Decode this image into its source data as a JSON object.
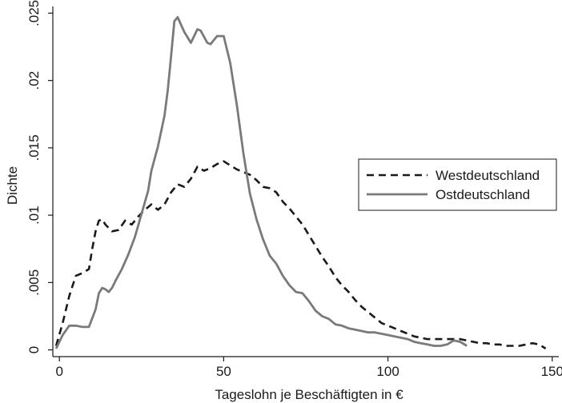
{
  "chart_data": {
    "type": "line",
    "title": "",
    "xlabel": "Tageslohn je Beschäftigten in €",
    "ylabel": "Dichte",
    "xlim": [
      -2,
      152
    ],
    "ylim": [
      -0.0005,
      0.0255
    ],
    "x_ticks": [
      0,
      50,
      100,
      150
    ],
    "x_tick_labels": [
      "0",
      "50",
      "100",
      "150"
    ],
    "y_ticks": [
      0,
      0.005,
      0.01,
      0.015,
      0.02,
      0.025
    ],
    "y_tick_labels": [
      "0",
      ".005",
      ".01",
      ".015",
      ".02",
      ".025"
    ],
    "grid": false,
    "legend_position": "right",
    "series": [
      {
        "name": "Westdeutschland",
        "style": "dashed",
        "color": "#1a1a1a",
        "points": [
          [
            -1,
            0.0003
          ],
          [
            1,
            0.002
          ],
          [
            3,
            0.004
          ],
          [
            5,
            0.0055
          ],
          [
            7,
            0.0057
          ],
          [
            9,
            0.006
          ],
          [
            10,
            0.0075
          ],
          [
            11,
            0.0088
          ],
          [
            12,
            0.0096
          ],
          [
            13,
            0.0097
          ],
          [
            14,
            0.0093
          ],
          [
            16,
            0.0088
          ],
          [
            18,
            0.0089
          ],
          [
            20,
            0.0096
          ],
          [
            22,
            0.0093
          ],
          [
            24,
            0.0099
          ],
          [
            26,
            0.0104
          ],
          [
            28,
            0.0108
          ],
          [
            30,
            0.0104
          ],
          [
            32,
            0.0108
          ],
          [
            34,
            0.0117
          ],
          [
            36,
            0.0123
          ],
          [
            38,
            0.0121
          ],
          [
            40,
            0.0127
          ],
          [
            42,
            0.0136
          ],
          [
            44,
            0.0133
          ],
          [
            46,
            0.0135
          ],
          [
            48,
            0.0138
          ],
          [
            50,
            0.014
          ],
          [
            52,
            0.0137
          ],
          [
            54,
            0.0134
          ],
          [
            56,
            0.0132
          ],
          [
            58,
            0.013
          ],
          [
            60,
            0.0126
          ],
          [
            62,
            0.0121
          ],
          [
            64,
            0.012
          ],
          [
            66,
            0.0117
          ],
          [
            68,
            0.011
          ],
          [
            70,
            0.0105
          ],
          [
            72,
            0.0099
          ],
          [
            74,
            0.0093
          ],
          [
            76,
            0.0085
          ],
          [
            78,
            0.0077
          ],
          [
            80,
            0.0069
          ],
          [
            82,
            0.0062
          ],
          [
            84,
            0.0054
          ],
          [
            86,
            0.0048
          ],
          [
            88,
            0.0043
          ],
          [
            90,
            0.0037
          ],
          [
            92,
            0.0032
          ],
          [
            94,
            0.0028
          ],
          [
            96,
            0.0024
          ],
          [
            98,
            0.002
          ],
          [
            100,
            0.0018
          ],
          [
            102,
            0.0016
          ],
          [
            104,
            0.0014
          ],
          [
            106,
            0.0012
          ],
          [
            108,
            0.001
          ],
          [
            110,
            0.0009
          ],
          [
            112,
            0.0008
          ],
          [
            114,
            0.0008
          ],
          [
            116,
            0.0008
          ],
          [
            118,
            0.0008
          ],
          [
            120,
            0.0008
          ],
          [
            122,
            0.0008
          ],
          [
            124,
            0.0007
          ],
          [
            126,
            0.0006
          ],
          [
            128,
            0.0005
          ],
          [
            130,
            0.0005
          ],
          [
            132,
            0.0004
          ],
          [
            134,
            0.0004
          ],
          [
            136,
            0.0003
          ],
          [
            138,
            0.0003
          ],
          [
            140,
            0.0003
          ],
          [
            142,
            0.0004
          ],
          [
            144,
            0.0005
          ],
          [
            146,
            0.0004
          ],
          [
            148,
            0.0001
          ]
        ]
      },
      {
        "name": "Ostdeutschland",
        "style": "solid",
        "color": "#7a7a7a",
        "points": [
          [
            -1,
            0.0001
          ],
          [
            1,
            0.0011
          ],
          [
            3,
            0.0018
          ],
          [
            5,
            0.0018
          ],
          [
            7,
            0.0017
          ],
          [
            9,
            0.0017
          ],
          [
            11,
            0.003
          ],
          [
            12,
            0.0042
          ],
          [
            13,
            0.0046
          ],
          [
            14,
            0.0045
          ],
          [
            15,
            0.0043
          ],
          [
            16,
            0.0046
          ],
          [
            17,
            0.0051
          ],
          [
            19,
            0.006
          ],
          [
            21,
            0.0071
          ],
          [
            23,
            0.0084
          ],
          [
            25,
            0.0101
          ],
          [
            27,
            0.0118
          ],
          [
            28,
            0.0133
          ],
          [
            30,
            0.0151
          ],
          [
            32,
            0.0174
          ],
          [
            33,
            0.0193
          ],
          [
            34,
            0.0218
          ],
          [
            35,
            0.0244
          ],
          [
            36,
            0.0247
          ],
          [
            38,
            0.0236
          ],
          [
            40,
            0.0228
          ],
          [
            42,
            0.0238
          ],
          [
            43,
            0.0237
          ],
          [
            45,
            0.0228
          ],
          [
            46,
            0.0227
          ],
          [
            48,
            0.0233
          ],
          [
            50,
            0.0233
          ],
          [
            52,
            0.0213
          ],
          [
            54,
            0.0182
          ],
          [
            56,
            0.0146
          ],
          [
            58,
            0.0116
          ],
          [
            60,
            0.0097
          ],
          [
            62,
            0.0082
          ],
          [
            64,
            0.007
          ],
          [
            66,
            0.0064
          ],
          [
            68,
            0.0055
          ],
          [
            70,
            0.0048
          ],
          [
            72,
            0.0043
          ],
          [
            74,
            0.0042
          ],
          [
            76,
            0.0036
          ],
          [
            78,
            0.0029
          ],
          [
            80,
            0.0025
          ],
          [
            82,
            0.0023
          ],
          [
            84,
            0.0019
          ],
          [
            86,
            0.0018
          ],
          [
            88,
            0.0016
          ],
          [
            90,
            0.0015
          ],
          [
            92,
            0.0014
          ],
          [
            94,
            0.0013
          ],
          [
            96,
            0.0013
          ],
          [
            98,
            0.0012
          ],
          [
            100,
            0.0011
          ],
          [
            102,
            0.001
          ],
          [
            104,
            0.0009
          ],
          [
            106,
            0.0008
          ],
          [
            108,
            0.0006
          ],
          [
            110,
            0.0005
          ],
          [
            112,
            0.0004
          ],
          [
            114,
            0.0003
          ],
          [
            116,
            0.0003
          ],
          [
            118,
            0.0004
          ],
          [
            120,
            0.0007
          ],
          [
            122,
            0.0006
          ],
          [
            124,
            0.0003
          ]
        ]
      }
    ]
  }
}
